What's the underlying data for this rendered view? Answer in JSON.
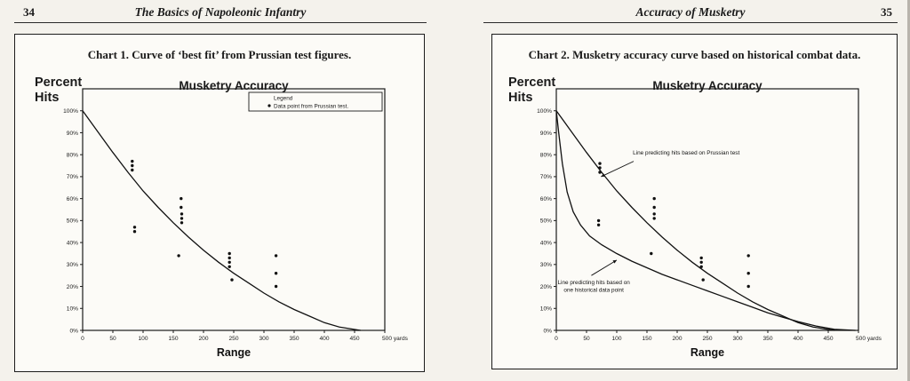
{
  "page": {
    "left": {
      "number": "34",
      "header": "The Basics of Napoleonic Infantry"
    },
    "right": {
      "number": "35",
      "header": "Accuracy of Musketry"
    }
  },
  "chart_data": [
    {
      "type": "line+scatter",
      "caption": "Chart 1. Curve of ‘best fit’ from Prussian test figures.",
      "title": "Musketry Accuracy",
      "ylabel": "Percent Hits",
      "ylabel_lines": [
        "Percent",
        "Hits"
      ],
      "xlabel": "Range",
      "xlim": [
        0,
        500
      ],
      "ylim": [
        0,
        100
      ],
      "x_ticks": [
        0,
        50,
        100,
        150,
        200,
        250,
        300,
        350,
        400,
        450,
        500
      ],
      "x_tick_labels": [
        "0",
        "50",
        "100",
        "150",
        "200",
        "250",
        "300",
        "350",
        "400",
        "450",
        "500 yards"
      ],
      "y_ticks": [
        100,
        90,
        80,
        70,
        60,
        50,
        40,
        30,
        20,
        10,
        0
      ],
      "y_tick_labels": [
        "100%",
        "90%",
        "80%",
        "70%",
        "60%",
        "50%",
        "40%",
        "30%",
        "20%",
        "10%",
        "0%"
      ],
      "grid": false,
      "legend": {
        "position": "top-right",
        "title": "Legend",
        "entries": [
          {
            "marker": "dot",
            "label": "Data point from Prussian test."
          }
        ]
      },
      "series": [
        {
          "name": "Best-fit curve from Prussian test figures",
          "type": "line",
          "points": [
            [
              0,
              100
            ],
            [
              25,
              90.5
            ],
            [
              50,
              81
            ],
            [
              75,
              72
            ],
            [
              100,
              63.5
            ],
            [
              125,
              56
            ],
            [
              150,
              49
            ],
            [
              175,
              42.5
            ],
            [
              200,
              36.5
            ],
            [
              225,
              31
            ],
            [
              250,
              26
            ],
            [
              275,
              21.5
            ],
            [
              300,
              17
            ],
            [
              325,
              13
            ],
            [
              350,
              9.5
            ],
            [
              375,
              6.5
            ],
            [
              400,
              3.5
            ],
            [
              425,
              1.5
            ],
            [
              460,
              0
            ]
          ]
        },
        {
          "name": "Prussian test data points",
          "type": "scatter",
          "points": [
            [
              82,
              77
            ],
            [
              82,
              75
            ],
            [
              82,
              73
            ],
            [
              86,
              47
            ],
            [
              86,
              45
            ],
            [
              163,
              60
            ],
            [
              163,
              56
            ],
            [
              164,
              53
            ],
            [
              164,
              51
            ],
            [
              164,
              49
            ],
            [
              159,
              34
            ],
            [
              243,
              35
            ],
            [
              243,
              33
            ],
            [
              243,
              31
            ],
            [
              243,
              29
            ],
            [
              247,
              23
            ],
            [
              320,
              34
            ],
            [
              320,
              26
            ],
            [
              320,
              20
            ]
          ]
        }
      ]
    },
    {
      "type": "line+scatter",
      "caption": "Chart 2. Musketry accuracy curve based on historical combat data.",
      "title": "Musketry Accuracy",
      "ylabel": "Percent Hits",
      "ylabel_lines": [
        "Percent",
        "Hits"
      ],
      "xlabel": "Range",
      "xlim": [
        0,
        500
      ],
      "ylim": [
        0,
        100
      ],
      "x_ticks": [
        0,
        50,
        100,
        150,
        200,
        250,
        300,
        350,
        400,
        450,
        500
      ],
      "x_tick_labels": [
        "0",
        "50",
        "100",
        "150",
        "200",
        "250",
        "300",
        "350",
        "400",
        "450",
        "500 yards"
      ],
      "y_ticks": [
        100,
        90,
        80,
        70,
        60,
        50,
        40,
        30,
        20,
        10,
        0
      ],
      "y_tick_labels": [
        "100%",
        "90%",
        "80%",
        "70%",
        "60%",
        "50%",
        "40%",
        "30%",
        "20%",
        "10%",
        "0%"
      ],
      "grid": false,
      "series": [
        {
          "name": "Line predicting hits based on Prussian test",
          "type": "line",
          "points": [
            [
              0,
              100
            ],
            [
              25,
              90.5
            ],
            [
              50,
              81
            ],
            [
              75,
              72
            ],
            [
              100,
              63.5
            ],
            [
              125,
              56
            ],
            [
              150,
              49
            ],
            [
              175,
              42.5
            ],
            [
              200,
              36.5
            ],
            [
              225,
              31
            ],
            [
              250,
              26
            ],
            [
              275,
              21.5
            ],
            [
              300,
              17
            ],
            [
              325,
              13
            ],
            [
              350,
              9.5
            ],
            [
              375,
              6.5
            ],
            [
              400,
              3.5
            ],
            [
              425,
              1.5
            ],
            [
              460,
              0
            ]
          ]
        },
        {
          "name": "Line predicting hits based on one historical data point",
          "type": "line",
          "points": [
            [
              0,
              100
            ],
            [
              4,
              90
            ],
            [
              10,
              76
            ],
            [
              18,
              63
            ],
            [
              28,
              54
            ],
            [
              40,
              48
            ],
            [
              55,
              43
            ],
            [
              75,
              39
            ],
            [
              100,
              35
            ],
            [
              125,
              31.5
            ],
            [
              150,
              28.5
            ],
            [
              175,
              25.5
            ],
            [
              200,
              23
            ],
            [
              225,
              20.5
            ],
            [
              250,
              18
            ],
            [
              275,
              15.5
            ],
            [
              300,
              13
            ],
            [
              325,
              10.5
            ],
            [
              350,
              8
            ],
            [
              375,
              6
            ],
            [
              400,
              4
            ],
            [
              430,
              2
            ],
            [
              460,
              0.5
            ],
            [
              495,
              0
            ]
          ]
        },
        {
          "name": "Historical combat data points",
          "type": "scatter",
          "points": [
            [
              72,
              76
            ],
            [
              72,
              74
            ],
            [
              72,
              72
            ],
            [
              70,
              50
            ],
            [
              70,
              48
            ],
            [
              162,
              60
            ],
            [
              162,
              56
            ],
            [
              162,
              53
            ],
            [
              162,
              51
            ],
            [
              157,
              35
            ],
            [
              240,
              33
            ],
            [
              240,
              31
            ],
            [
              240,
              29
            ],
            [
              243,
              23
            ],
            [
              318,
              34
            ],
            [
              318,
              26
            ],
            [
              318,
              20
            ]
          ]
        }
      ],
      "annotations": [
        {
          "lines": [
            "Line predicting hits based on Prussian test"
          ],
          "text_x": 215,
          "text_y": 80,
          "arrow_from": [
            128,
            77
          ],
          "arrow_to": [
            74,
            70
          ]
        },
        {
          "lines": [
            "Line predicting hits based on",
            "one historical data point"
          ],
          "text_x": 62,
          "text_y": 21,
          "arrow_from": [
            58,
            25
          ],
          "arrow_to": [
            100,
            32
          ]
        }
      ]
    }
  ]
}
